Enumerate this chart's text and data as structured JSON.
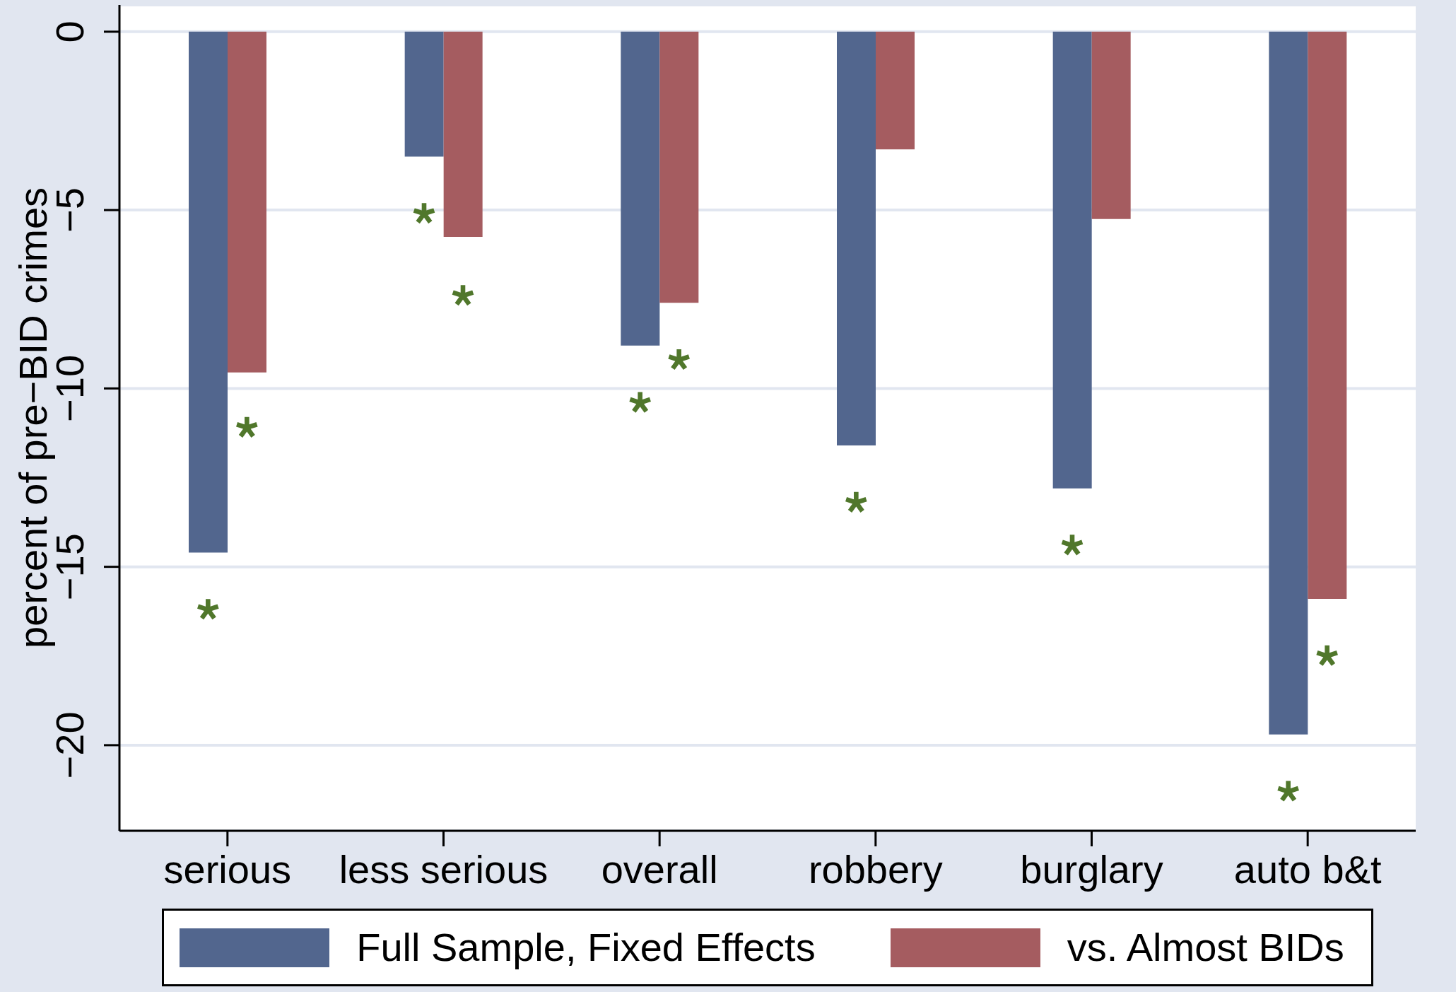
{
  "chart_data": {
    "type": "bar",
    "ylabel": "percent of pre−BID crimes",
    "categories": [
      "serious",
      "less serious",
      "overall",
      "robbery",
      "burglary",
      "auto b&t"
    ],
    "series": [
      {
        "name": "Full Sample, Fixed Effects",
        "color": "#52668e",
        "values": [
          -14.6,
          -3.5,
          -8.8,
          -11.6,
          -12.8,
          -19.7
        ]
      },
      {
        "name": "vs. Almost BIDs",
        "color": "#a55c60",
        "values": [
          -9.55,
          -5.75,
          -7.6,
          -3.3,
          -5.25,
          -15.9
        ]
      },
      {
        "type": "scatter",
        "color": "#50772b",
        "values": [
          -16.2,
          -5.1,
          -10.4,
          -13.2,
          -14.4,
          -21.3
        ]
      },
      {
        "type": "scatter",
        "color": "#50772b",
        "values": [
          -11.1,
          -7.4,
          -9.2,
          null,
          null,
          -17.5
        ]
      }
    ],
    "ylim": [
      -22.4,
      0.75
    ],
    "yticks": [
      {
        "value": -20,
        "label": "−20"
      },
      {
        "value": -15,
        "label": "−15"
      },
      {
        "value": -10,
        "label": "−10"
      },
      {
        "value": -5,
        "label": "−5"
      },
      0
    ],
    "grid": "y",
    "legend": "bottom",
    "marker": "cross"
  }
}
